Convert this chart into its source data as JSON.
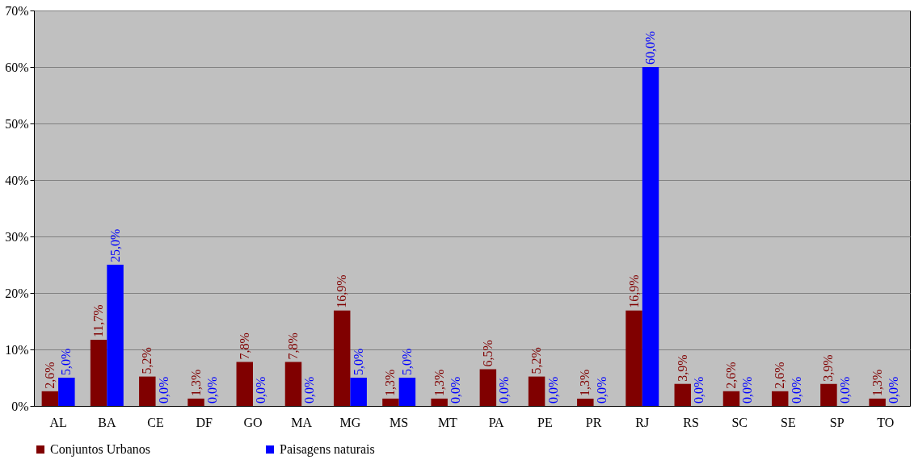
{
  "chart_data": {
    "type": "bar",
    "categories": [
      "AL",
      "BA",
      "CE",
      "DF",
      "GO",
      "MA",
      "MG",
      "MS",
      "MT",
      "PA",
      "PE",
      "PR",
      "RJ",
      "RS",
      "SC",
      "SE",
      "SP",
      "TO"
    ],
    "series": [
      {
        "name": "Conjuntos Urbanos",
        "color": "#800000",
        "values": [
          2.6,
          11.7,
          5.2,
          1.3,
          7.8,
          7.8,
          16.9,
          1.3,
          1.3,
          6.5,
          5.2,
          1.3,
          16.9,
          3.9,
          2.6,
          2.6,
          3.9,
          1.3
        ],
        "value_labels": [
          "2,6%",
          "11,7%",
          "5,2%",
          "1,3%",
          "7,8%",
          "7,8%",
          "16,9%",
          "1,3%",
          "1,3%",
          "6,5%",
          "5,2%",
          "1,3%",
          "16,9%",
          "3,9%",
          "2,6%",
          "2,6%",
          "3,9%",
          "1,3%"
        ]
      },
      {
        "name": "Paisagens naturais",
        "color": "#0000ff",
        "values": [
          5.0,
          25.0,
          0,
          0,
          0,
          0,
          5.0,
          5.0,
          0,
          0,
          0,
          0,
          60.0,
          0,
          0,
          0,
          0,
          0
        ],
        "value_labels": [
          "5,0%",
          "25,0%",
          "0,0%",
          "0,0%",
          "0,0%",
          "0,0%",
          "5,0%",
          "5,0%",
          "0,0%",
          "0,0%",
          "0,0%",
          "0,0%",
          "60,0%",
          "0,0%",
          "0,0%",
          "0,0%",
          "0,0%",
          "0,0%"
        ]
      }
    ],
    "ylim": [
      0,
      70
    ],
    "yticks": [
      {
        "value": 0,
        "label": "0%"
      },
      {
        "value": 10,
        "label": "10%"
      },
      {
        "value": 20,
        "label": "20%"
      },
      {
        "value": 30,
        "label": "30%"
      },
      {
        "value": 40,
        "label": "40%"
      },
      {
        "value": 50,
        "label": "50%"
      },
      {
        "value": 60,
        "label": "60%"
      },
      {
        "value": 70,
        "label": "70%"
      }
    ],
    "grid": "y",
    "legend": "bottom"
  }
}
